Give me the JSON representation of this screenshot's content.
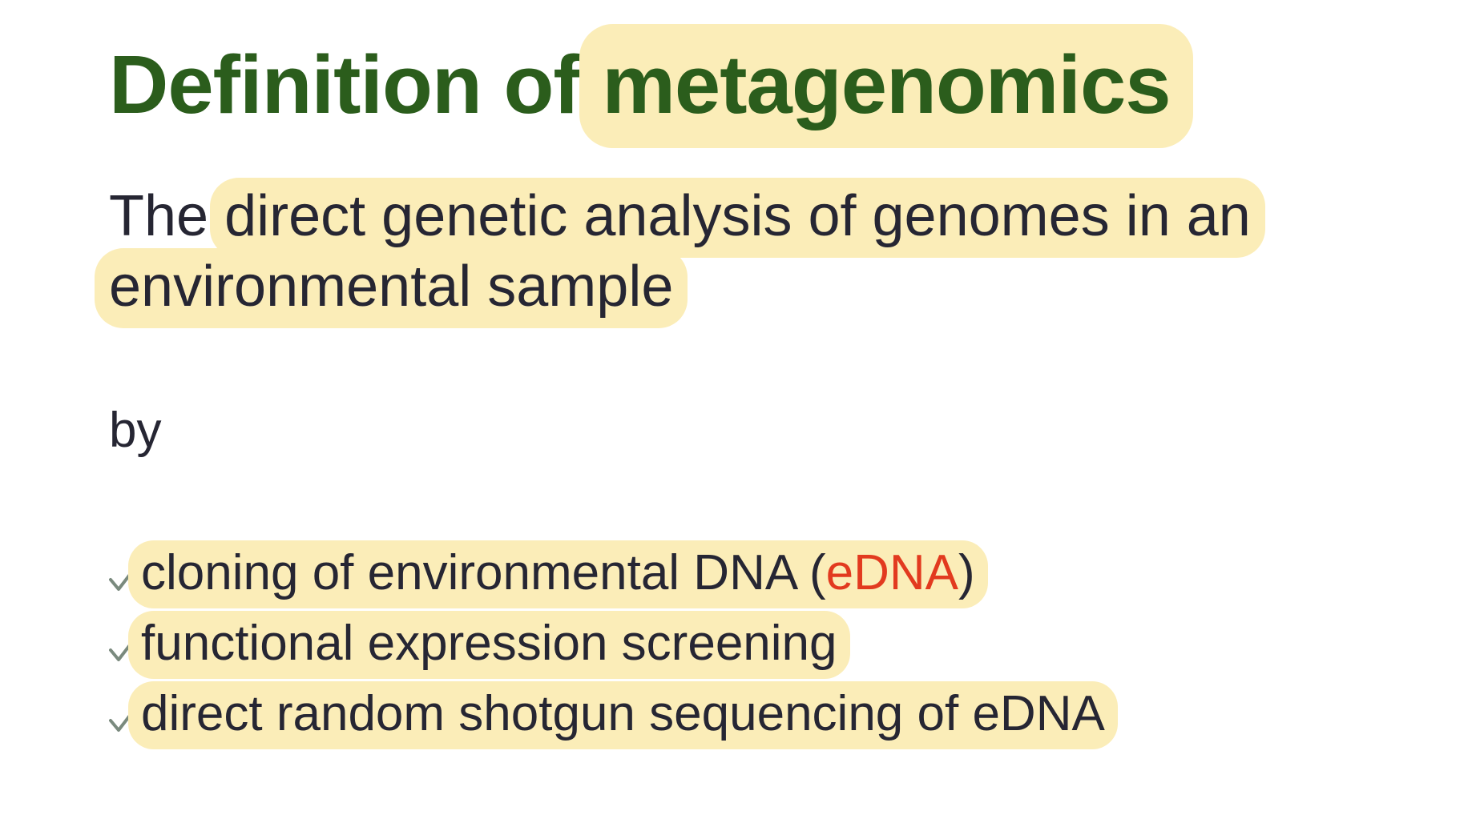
{
  "title": {
    "prefix": "Definition of",
    "highlight": "metagenomics"
  },
  "definition": {
    "lead": "The",
    "highlight_line1": "direct genetic analysis of genomes in an",
    "highlight_line2": "environmental sample"
  },
  "by_label": "by",
  "methods": [
    {
      "icon": "check-icon",
      "text_before": "cloning of environmental DNA (",
      "accent_text": "eDNA",
      "text_after": ")"
    },
    {
      "icon": "check-icon",
      "text": "functional expression screening"
    },
    {
      "icon": "check-icon",
      "text": "direct random shotgun sequencing of eDNA"
    }
  ],
  "colors": {
    "title": "#2b5d1c",
    "body_text": "#262633",
    "highlight": "#fbedb8",
    "accent": "#e23a1f",
    "check": "#7a8a7e"
  }
}
